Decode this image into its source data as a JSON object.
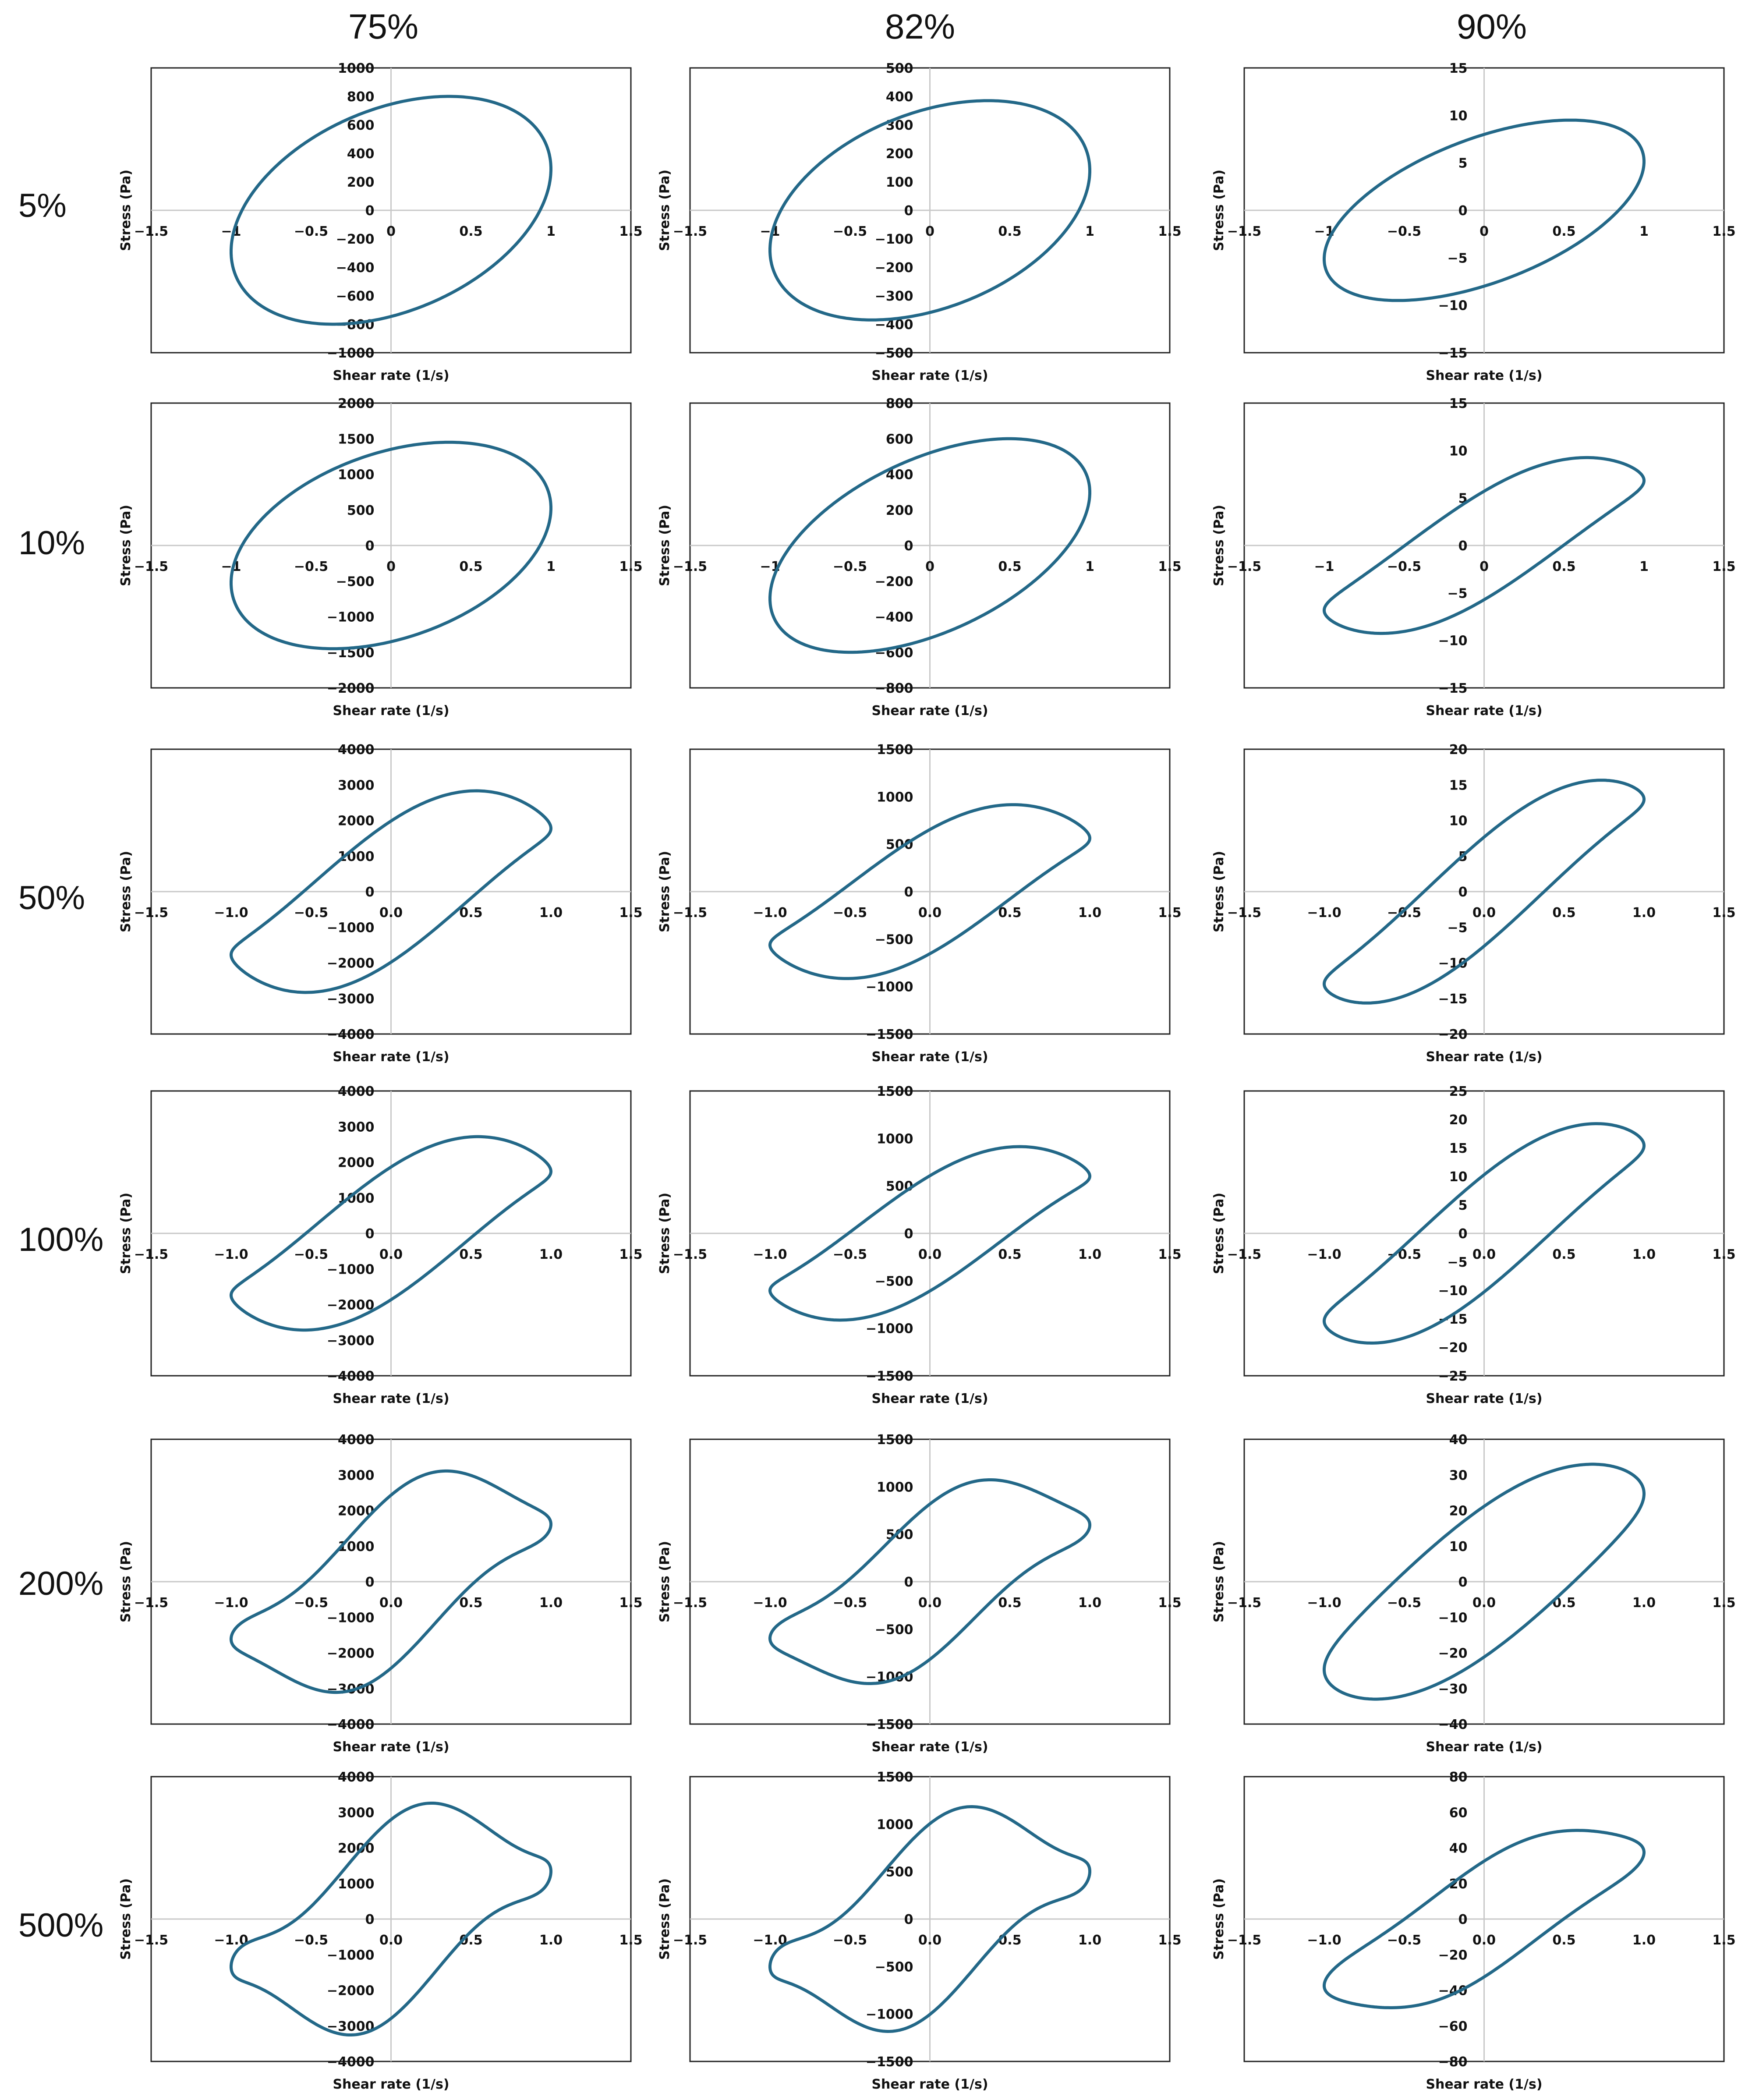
{
  "columns": [
    "75%",
    "82%",
    "90%"
  ],
  "rows": [
    "5%",
    "10%",
    "50%",
    "100%",
    "200%",
    "500%"
  ],
  "colors": {
    "curve": "#236888",
    "frame": "#222222",
    "axis": "#c8c8c8"
  },
  "chart_data": [
    {
      "type": "line",
      "ylabel": "Stress (Pa)",
      "xlabel": "Shear rate (1/s)",
      "xlim": [
        -1.5,
        1.5
      ],
      "xticks": [
        "−1.5",
        "−1",
        "−0.5",
        "0",
        "0.5",
        "1",
        "1.5"
      ],
      "ylim": [
        -1000,
        1000
      ],
      "yticks": [
        "1000",
        "800",
        "600",
        "400",
        "200",
        "0",
        "−200",
        "−400",
        "−600",
        "−800",
        "−1000"
      ],
      "loop": {
        "amp": 800,
        "phase": 1.2,
        "h3": 0,
        "h5": 0
      }
    },
    {
      "type": "line",
      "ylabel": "Stress (Pa)",
      "xlabel": "Shear rate (1/s)",
      "xlim": [
        -1.5,
        1.5
      ],
      "xticks": [
        "−1.5",
        "−1",
        "−0.5",
        "0",
        "0.5",
        "1",
        "1.5"
      ],
      "ylim": [
        -500,
        500
      ],
      "yticks": [
        "500",
        "400",
        "300",
        "200",
        "100",
        "0",
        "−100",
        "−200",
        "−300",
        "−400",
        "−500"
      ],
      "loop": {
        "amp": 385,
        "phase": 1.2,
        "h3": 0,
        "h5": 0
      }
    },
    {
      "type": "line",
      "ylabel": "Stress (Pa)",
      "xlabel": "Shear rate (1/s)",
      "xlim": [
        -1.5,
        1.5
      ],
      "xticks": [
        "−1.5",
        "−1",
        "−0.5",
        "0",
        "0.5",
        "1",
        "1.5"
      ],
      "ylim": [
        -15,
        15
      ],
      "yticks": [
        "15",
        "10",
        "5",
        "0",
        "−5",
        "−10",
        "−15"
      ],
      "loop": {
        "amp": 9.5,
        "phase": 1.0,
        "h3": 0,
        "h5": 0
      }
    },
    {
      "type": "line",
      "ylabel": "Stress (Pa)",
      "xlabel": "Shear rate (1/s)",
      "xlim": [
        -1.5,
        1.5
      ],
      "xticks": [
        "−1.5",
        "−1",
        "−0.5",
        "0",
        "0.5",
        "1",
        "1.5"
      ],
      "ylim": [
        -2000,
        2000
      ],
      "yticks": [
        "2000",
        "1500",
        "1000",
        "500",
        "0",
        "−500",
        "−1000",
        "−1500",
        "−2000"
      ],
      "loop": {
        "amp": 1450,
        "phase": 1.2,
        "h3": 0,
        "h5": 0
      }
    },
    {
      "type": "line",
      "ylabel": "Stress (Pa)",
      "xlabel": "Shear rate (1/s)",
      "xlim": [
        -1.5,
        1.5
      ],
      "xticks": [
        "−1.5",
        "−1",
        "−0.5",
        "0",
        "0.5",
        "1",
        "1.5"
      ],
      "ylim": [
        -800,
        800
      ],
      "yticks": [
        "800",
        "600",
        "400",
        "200",
        "0",
        "−200",
        "−400",
        "−600",
        "−800"
      ],
      "loop": {
        "amp": 600,
        "phase": 1.05,
        "h3": 0,
        "h5": 0
      }
    },
    {
      "type": "line",
      "ylabel": "Stress (Pa)",
      "xlabel": "Shear rate (1/s)",
      "xlim": [
        -1.5,
        1.5
      ],
      "xticks": [
        "−1.5",
        "−1",
        "−0.5",
        "0",
        "0.5",
        "1",
        "1.5"
      ],
      "ylim": [
        -15,
        15
      ],
      "yticks": [
        "15",
        "10",
        "5",
        "0",
        "−5",
        "−10",
        "−15"
      ],
      "loop": {
        "amp": 9.2,
        "phase": 0.6,
        "h3": 0.1,
        "h5": 0
      }
    },
    {
      "type": "line",
      "ylabel": "Stress (Pa)",
      "xlabel": "Shear rate (1/s)",
      "xlim": [
        -1.5,
        1.5
      ],
      "xticks": [
        "−1.5",
        "−1.0",
        "−0.5",
        "0.0",
        "0.5",
        "1.0",
        "1.5"
      ],
      "ylim": [
        -4000,
        4000
      ],
      "yticks": [
        "4000",
        "3000",
        "2000",
        "1000",
        "0",
        "−1000",
        "−2000",
        "−3000",
        "−4000"
      ],
      "loop": {
        "amp": 2700,
        "phase": 0.7,
        "h3": 0.14,
        "h5": 0
      }
    },
    {
      "type": "line",
      "ylabel": "Stress (Pa)",
      "xlabel": "Shear rate (1/s)",
      "xlim": [
        -1.5,
        1.5
      ],
      "xticks": [
        "−1.5",
        "−1.0",
        "−0.5",
        "0.0",
        "0.5",
        "1.0",
        "1.5"
      ],
      "ylim": [
        -1500,
        1500
      ],
      "yticks": [
        "1500",
        "1000",
        "500",
        "0",
        "−500",
        "−1000",
        "−1500"
      ],
      "loop": {
        "amp": 870,
        "phase": 0.72,
        "h3": 0.14,
        "h5": 0
      }
    },
    {
      "type": "line",
      "ylabel": "Stress (Pa)",
      "xlabel": "Shear rate (1/s)",
      "xlim": [
        -1.5,
        1.5
      ],
      "xticks": [
        "−1.5",
        "−1.0",
        "−0.5",
        "0.0",
        "0.5",
        "1.0",
        "1.5"
      ],
      "ylim": [
        -20,
        20
      ],
      "yticks": [
        "20",
        "15",
        "10",
        "5",
        "0",
        "−5",
        "−10",
        "−15",
        "−20"
      ],
      "loop": {
        "amp": 16,
        "phase": 0.45,
        "h3": 0.1,
        "h5": 0
      }
    },
    {
      "type": "line",
      "ylabel": "Stress (Pa)",
      "xlabel": "Shear rate (1/s)",
      "xlim": [
        -1.5,
        1.5
      ],
      "xticks": [
        "−1.5",
        "−1.0",
        "−0.5",
        "0.0",
        "0.5",
        "1.0",
        "1.5"
      ],
      "ylim": [
        -4000,
        4000
      ],
      "yticks": [
        "4000",
        "3000",
        "2000",
        "1000",
        "0",
        "−1000",
        "−2000",
        "−3000",
        "−4000"
      ],
      "loop": {
        "amp": 2600,
        "phase": 0.68,
        "h3": 0.14,
        "h5": 0
      }
    },
    {
      "type": "line",
      "ylabel": "Stress (Pa)",
      "xlabel": "Shear rate (1/s)",
      "xlim": [
        -1.5,
        1.5
      ],
      "xticks": [
        "−1.5",
        "−1.0",
        "−0.5",
        "0.0",
        "0.5",
        "1.0",
        "1.5"
      ],
      "ylim": [
        -1500,
        1500
      ],
      "yticks": [
        "1500",
        "1000",
        "500",
        "0",
        "−500",
        "−1000",
        "−1500"
      ],
      "loop": {
        "amp": 880,
        "phase": 0.65,
        "h3": 0.14,
        "h5": 0
      }
    },
    {
      "type": "line",
      "ylabel": "Stress (Pa)",
      "xlabel": "Shear rate (1/s)",
      "xlim": [
        -1.5,
        1.5
      ],
      "xticks": [
        "−1.5",
        "−1.0",
        "−0.5",
        "0.0",
        "0.5",
        "1.0",
        "1.5"
      ],
      "ylim": [
        -25,
        25
      ],
      "yticks": [
        "25",
        "20",
        "15",
        "10",
        "5",
        "0",
        "−5",
        "−10",
        "−15",
        "−20",
        "−25"
      ],
      "loop": {
        "amp": 19.5,
        "phase": 0.5,
        "h3": 0.1,
        "h5": 0
      }
    },
    {
      "type": "line",
      "ylabel": "Stress (Pa)",
      "xlabel": "Shear rate (1/s)",
      "xlim": [
        -1.5,
        1.5
      ],
      "xticks": [
        "−1.5",
        "−1.0",
        "−0.5",
        "0.0",
        "0.5",
        "1.0",
        "1.5"
      ],
      "ylim": [
        -4000,
        4000
      ],
      "yticks": [
        "4000",
        "3000",
        "2000",
        "1000",
        "0",
        "−1000",
        "−2000",
        "−3000",
        "−4000"
      ],
      "loop": {
        "amp": 2700,
        "phase": 0.78,
        "h3": 0.22,
        "h5": 0.06
      }
    },
    {
      "type": "line",
      "ylabel": "Stress (Pa)",
      "xlabel": "Shear rate (1/s)",
      "xlim": [
        -1.5,
        1.5
      ],
      "xticks": [
        "−1.5",
        "−1.0",
        "−0.5",
        "0.0",
        "0.5",
        "1.0",
        "1.5"
      ],
      "ylim": [
        -1500,
        1500
      ],
      "yticks": [
        "1500",
        "1000",
        "500",
        "0",
        "−500",
        "−1000",
        "−1500"
      ],
      "loop": {
        "amp": 960,
        "phase": 0.75,
        "h3": 0.2,
        "h5": 0.05
      }
    },
    {
      "type": "line",
      "ylabel": "Stress (Pa)",
      "xlabel": "Shear rate (1/s)",
      "xlim": [
        -1.5,
        1.5
      ],
      "xticks": [
        "−1.5",
        "−1.0",
        "−0.5",
        "0.0",
        "0.5",
        "1.0",
        "1.5"
      ],
      "ylim": [
        -40,
        40
      ],
      "yticks": [
        "40",
        "30",
        "20",
        "10",
        "0",
        "−10",
        "−20",
        "−30",
        "−40"
      ],
      "loop": {
        "amp": 33,
        "phase": 0.65,
        "h3": 0.06,
        "h5": 0
      }
    },
    {
      "type": "line",
      "ylabel": "Stress (Pa)",
      "xlabel": "Shear rate (1/s)",
      "xlim": [
        -1.5,
        1.5
      ],
      "xticks": [
        "−1.5",
        "−1.0",
        "−0.5",
        "0.0",
        "0.5",
        "1.0",
        "1.5"
      ],
      "ylim": [
        -4000,
        4000
      ],
      "yticks": [
        "4000",
        "3000",
        "2000",
        "1000",
        "0",
        "−1000",
        "−2000",
        "−3000",
        "−4000"
      ],
      "loop": {
        "amp": 2600,
        "phase": 0.92,
        "h3": 0.25,
        "h5": 0.1
      }
    },
    {
      "type": "line",
      "ylabel": "Stress (Pa)",
      "xlabel": "Shear rate (1/s)",
      "xlim": [
        -1.5,
        1.5
      ],
      "xticks": [
        "−1.5",
        "−1.0",
        "−0.5",
        "0.0",
        "0.5",
        "1.0",
        "1.5"
      ],
      "ylim": [
        -1500,
        1500
      ],
      "yticks": [
        "1500",
        "1000",
        "500",
        "0",
        "−500",
        "−1000",
        "−1500"
      ],
      "loop": {
        "amp": 950,
        "phase": 0.9,
        "h3": 0.25,
        "h5": 0.1
      }
    },
    {
      "type": "line",
      "ylabel": "Stress (Pa)",
      "xlabel": "Shear rate (1/s)",
      "xlim": [
        -1.5,
        1.5
      ],
      "xticks": [
        "−1.5",
        "−1.0",
        "−0.5",
        "0.0",
        "0.5",
        "1.0",
        "1.5"
      ],
      "ylim": [
        -80,
        80
      ],
      "yticks": [
        "80",
        "60",
        "40",
        "20",
        "0",
        "−20",
        "−40",
        "−60",
        "−80"
      ],
      "loop": {
        "amp": 50,
        "phase": 0.62,
        "h3": 0.1,
        "h5": 0.02
      }
    }
  ]
}
